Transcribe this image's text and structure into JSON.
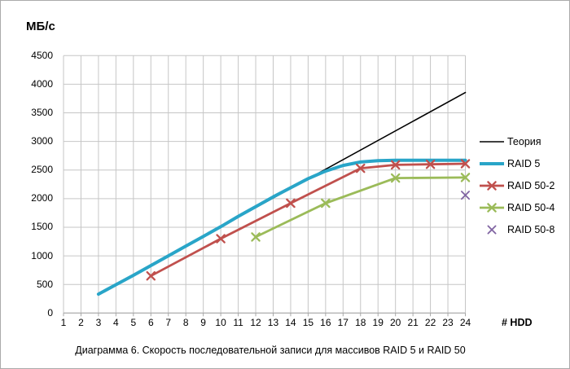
{
  "chart": {
    "y_axis_title": "МБ/с",
    "x_axis_title": "# HDD",
    "caption": "Диаграмма 6. Скорость последовательной записи для массивов RAID 5 и RAID 50",
    "y_ticks": [
      0,
      500,
      1000,
      1500,
      2000,
      2500,
      3000,
      3500,
      4000,
      4500
    ],
    "x_ticks": [
      1,
      2,
      3,
      4,
      5,
      6,
      7,
      8,
      9,
      10,
      11,
      12,
      13,
      14,
      15,
      16,
      17,
      18,
      19,
      20,
      21,
      22,
      23,
      24
    ]
  },
  "colors": {
    "gridline": "#c6c6c6",
    "axis": "#a6a6a6",
    "text": "#000000"
  },
  "chart_data": {
    "type": "line",
    "title": "Диаграмма 6. Скорость последовательной записи для массивов RAID 5 и RAID 50",
    "xlabel": "# HDD",
    "ylabel": "МБ/с",
    "xlim": [
      1,
      24
    ],
    "ylim": [
      0,
      4500
    ],
    "grid": true,
    "legend_position": "right",
    "series": [
      {
        "id": "theory",
        "name": "Теория",
        "color": "#000000",
        "width": 1.6,
        "marker": "none",
        "marker_width": 0,
        "points": [
          [
            3,
            335
          ],
          [
            24,
            3855
          ]
        ]
      },
      {
        "id": "raid-5",
        "name": "RAID 5",
        "color": "#29a5c8",
        "width": 4,
        "marker": "none",
        "marker_width": 0,
        "points": [
          [
            3,
            330
          ],
          [
            4,
            495
          ],
          [
            5,
            660
          ],
          [
            6,
            830
          ],
          [
            7,
            1000
          ],
          [
            8,
            1170
          ],
          [
            9,
            1340
          ],
          [
            10,
            1510
          ],
          [
            11,
            1690
          ],
          [
            12,
            1860
          ],
          [
            13,
            2030
          ],
          [
            14,
            2190
          ],
          [
            15,
            2350
          ],
          [
            16,
            2480
          ],
          [
            17,
            2580
          ],
          [
            18,
            2640
          ],
          [
            19,
            2665
          ],
          [
            20,
            2670
          ],
          [
            21,
            2670
          ],
          [
            22,
            2670
          ],
          [
            23,
            2670
          ],
          [
            24,
            2670
          ]
        ]
      },
      {
        "id": "raid-50-2",
        "name": "RAID 50-2",
        "color": "#c0504d",
        "width": 2.8,
        "marker": "x",
        "marker_width": 2.3,
        "points": [
          [
            6,
            650
          ],
          [
            10,
            1300
          ],
          [
            14,
            1920
          ],
          [
            18,
            2530
          ],
          [
            20,
            2590
          ],
          [
            22,
            2600
          ],
          [
            24,
            2610
          ]
        ]
      },
      {
        "id": "raid-50-4",
        "name": "RAID 50-4",
        "color": "#9bbb59",
        "width": 2.8,
        "marker": "x",
        "marker_width": 2.3,
        "points": [
          [
            12,
            1330
          ],
          [
            16,
            1920
          ],
          [
            20,
            2360
          ],
          [
            24,
            2370
          ]
        ]
      },
      {
        "id": "raid-50-8",
        "name": "RAID 50-8",
        "color": "#8064a2",
        "width": 0,
        "marker": "x",
        "marker_width": 1.8,
        "points": [
          [
            24,
            2060
          ]
        ]
      }
    ]
  }
}
